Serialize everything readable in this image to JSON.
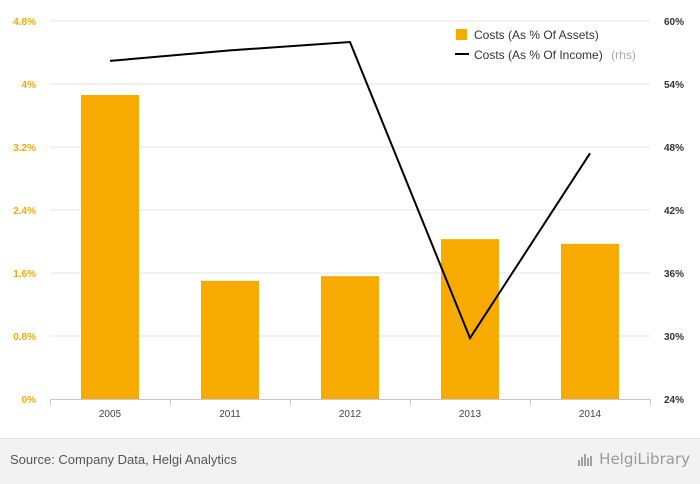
{
  "chart_data": {
    "type": "bar+line",
    "categories": [
      "2005",
      "2011",
      "2012",
      "2013",
      "2014"
    ],
    "series": [
      {
        "name": "Costs (As % Of Assets)",
        "type": "bar",
        "axis": "left",
        "color": "#f7ab00",
        "values": [
          3.86,
          1.5,
          1.56,
          2.03,
          1.97
        ]
      },
      {
        "name": "Costs (As % Of Income)",
        "rhs_tag": "(rhs)",
        "type": "line",
        "axis": "right",
        "color": "#000000",
        "values": [
          56.2,
          57.2,
          58.0,
          29.8,
          47.4
        ]
      }
    ],
    "left_axis": {
      "ylim": [
        0,
        4.8
      ],
      "ticks": [
        0,
        0.8,
        1.6,
        2.4,
        3.2,
        4.0,
        4.8
      ],
      "tick_labels": [
        "0%",
        "0.8%",
        "1.6%",
        "2.4%",
        "3.2%",
        "4%",
        "4.8%"
      ],
      "color": "#f2a900"
    },
    "right_axis": {
      "ylim": [
        24,
        60
      ],
      "ticks": [
        24,
        30,
        36,
        42,
        48,
        54,
        60
      ],
      "tick_labels": [
        "24%",
        "30%",
        "36%",
        "42%",
        "48%",
        "54%",
        "60%"
      ]
    },
    "grid": "horizontal",
    "legend_position": "top-right"
  },
  "footer": {
    "source": "Source: Company Data, Helgi Analytics",
    "logo_text": "HelgiLibrary"
  }
}
